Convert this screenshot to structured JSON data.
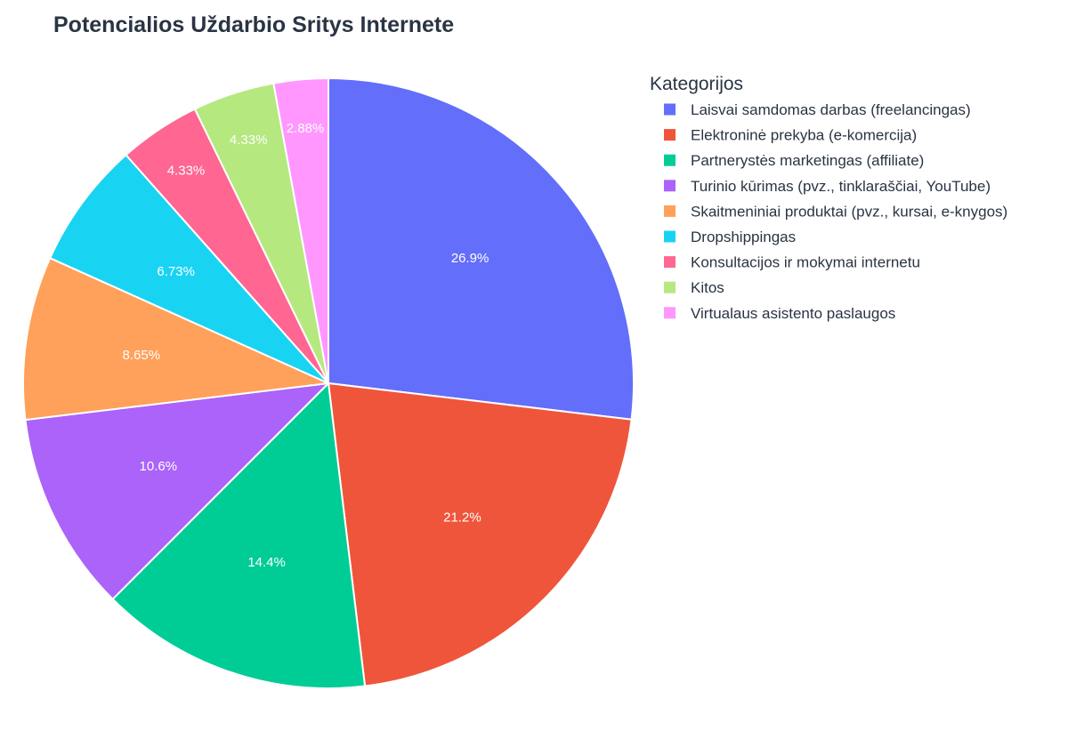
{
  "chart_data": {
    "type": "pie",
    "title": "Potencialios Uždarbio Sritys Internete",
    "legend_title": "Kategorijos",
    "legend_position": "right",
    "direction": "clockwise",
    "start": "top",
    "slices": [
      {
        "label": "Laisvai samdomas darbas (freelancingas)",
        "value": 26.9,
        "text": "26.9%",
        "color": "#636efa"
      },
      {
        "label": "Elektroninė prekyba (e-komercija)",
        "value": 21.2,
        "text": "21.2%",
        "color": "#ef553b"
      },
      {
        "label": "Partnerystės marketingas (affiliate)",
        "value": 14.4,
        "text": "14.4%",
        "color": "#00cc96"
      },
      {
        "label": "Turinio kūrimas (pvz., tinklaraščiai, YouTube)",
        "value": 10.6,
        "text": "10.6%",
        "color": "#ab63fa"
      },
      {
        "label": "Skaitmeniniai produktai (pvz., kursai, e-knygos)",
        "value": 8.65,
        "text": "8.65%",
        "color": "#ffa15a"
      },
      {
        "label": "Dropshippingas",
        "value": 6.73,
        "text": "6.73%",
        "color": "#19d3f3"
      },
      {
        "label": "Konsultacijos ir mokymai internetu",
        "value": 4.33,
        "text": "4.33%",
        "color": "#ff6692"
      },
      {
        "label": "Kitos",
        "value": 4.33,
        "text": "4.33%",
        "color": "#b6e880"
      },
      {
        "label": "Virtualaus asistento paslaugos",
        "value": 2.88,
        "text": "2.88%",
        "color": "#ff97ff"
      }
    ]
  }
}
